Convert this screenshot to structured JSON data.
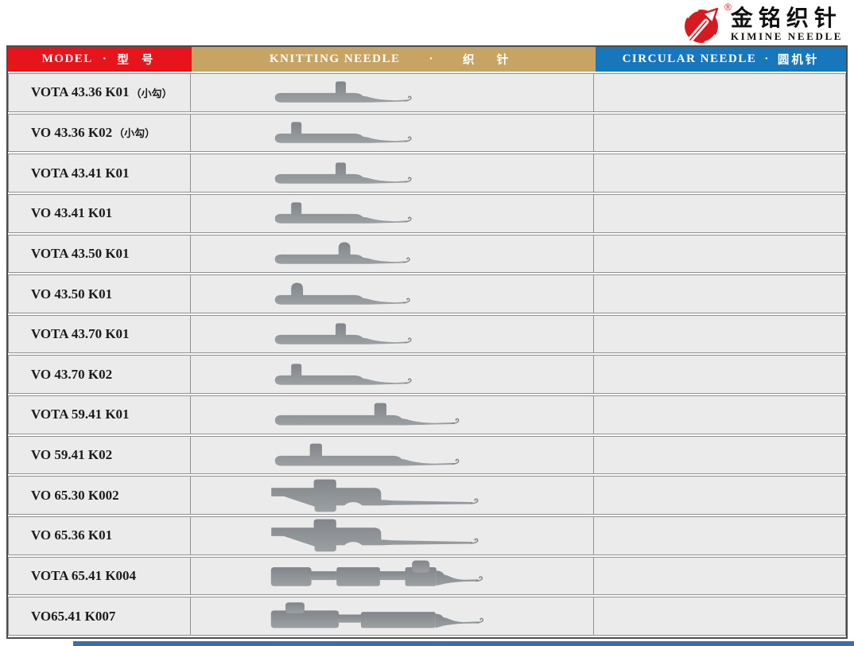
{
  "brand": {
    "logo_cn": "金铭织针",
    "logo_en": "KIMINE NEEDLE",
    "registered_mark": "®"
  },
  "header": {
    "columns": [
      {
        "en": "MODEL",
        "dot": "·",
        "cn": "型 号"
      },
      {
        "en": "KNITTING NEEDLE",
        "dot": "·",
        "cn": "织 针"
      },
      {
        "en": "CIRCULAR NEEDLE",
        "dot": "·",
        "cn": "圆机针"
      }
    ]
  },
  "rows": [
    {
      "model": "VOTA 43.36 K01",
      "note": "（小勾）",
      "shape": "s1"
    },
    {
      "model": "VO 43.36 K02",
      "note": "（小勾）",
      "shape": "s2"
    },
    {
      "model": "VOTA 43.41 K01",
      "note": "",
      "shape": "s1"
    },
    {
      "model": "VO 43.41 K01",
      "note": "",
      "shape": "s2"
    },
    {
      "model": "VOTA 43.50 K01",
      "note": "",
      "shape": "s5"
    },
    {
      "model": "VO 43.50 K01",
      "note": "",
      "shape": "s6"
    },
    {
      "model": "VOTA 43.70 K01",
      "note": "",
      "shape": "s1"
    },
    {
      "model": "VO 43.70 K02",
      "note": "",
      "shape": "s2"
    },
    {
      "model": "VOTA 59.41 K01",
      "note": "",
      "shape": "s9"
    },
    {
      "model": "VO 59.41 K02",
      "note": "",
      "shape": "s10"
    },
    {
      "model": "VO 65.30 K002",
      "note": "",
      "shape": "s11"
    },
    {
      "model": "VO 65.36 K01",
      "note": "",
      "shape": "s11"
    },
    {
      "model": "VOTA 65.41 K004",
      "note": "",
      "shape": "s13"
    },
    {
      "model": "VO65.41 K007",
      "note": "",
      "shape": "s14"
    }
  ],
  "colors": {
    "header_model": "#e8141b",
    "header_knitting": "#c7a364",
    "header_circular": "#1777bd",
    "row_bg": "#ebebeb",
    "grid_line": "#8f9092",
    "outer_border": "#4b4c4e",
    "needle_dark": "#82868a",
    "needle_light": "#9ba0a3",
    "text": "#1c1a1b",
    "footer_bar": "#2f73b3",
    "logo_red": "#d91920"
  }
}
